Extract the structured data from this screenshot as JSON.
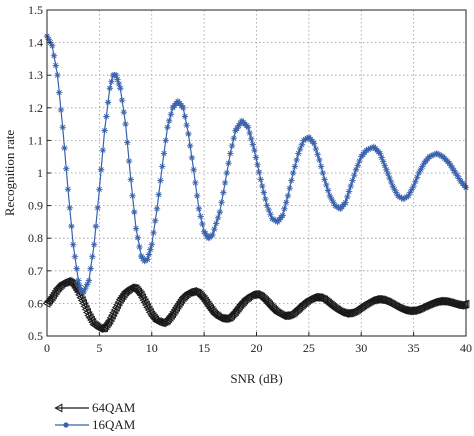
{
  "chart_data": {
    "type": "line",
    "xlabel": "SNR (dB)",
    "ylabel": "Recognition rate",
    "xlim": [
      0,
      40
    ],
    "ylim": [
      0.5,
      1.5
    ],
    "x_ticks": [
      "0",
      "5",
      "10",
      "15",
      "20",
      "25",
      "30",
      "35",
      "40"
    ],
    "y_ticks": [
      "0.5",
      "0.6",
      "0.7",
      "0.8",
      "0.9",
      "1",
      "1.1",
      "1.2",
      "1.3",
      "1.4",
      "1.5"
    ],
    "grid": true,
    "legend_position": "bottom-left",
    "series": [
      {
        "name": "64QAM",
        "color": "#1a1a1a",
        "marker": "left-triangle",
        "points": [
          [
            0,
            0.6
          ],
          [
            0.5,
            0.62
          ],
          [
            1.0,
            0.645
          ],
          [
            1.5,
            0.662
          ],
          [
            2.0,
            0.668
          ],
          [
            2.5,
            0.66
          ],
          [
            3.0,
            0.635
          ],
          [
            3.5,
            0.6
          ],
          [
            4.0,
            0.563
          ],
          [
            4.5,
            0.535
          ],
          [
            5.0,
            0.523
          ],
          [
            5.5,
            0.525
          ],
          [
            6.0,
            0.548
          ],
          [
            6.5,
            0.58
          ],
          [
            7.0,
            0.612
          ],
          [
            7.5,
            0.635
          ],
          [
            8.0,
            0.648
          ],
          [
            8.5,
            0.645
          ],
          [
            9.0,
            0.625
          ],
          [
            9.5,
            0.595
          ],
          [
            10.0,
            0.565
          ],
          [
            10.5,
            0.545
          ],
          [
            11.0,
            0.54
          ],
          [
            11.5,
            0.548
          ],
          [
            12.0,
            0.568
          ],
          [
            12.5,
            0.594
          ],
          [
            13.0,
            0.618
          ],
          [
            13.5,
            0.633
          ],
          [
            14.0,
            0.637
          ],
          [
            14.5,
            0.63
          ],
          [
            15.0,
            0.613
          ],
          [
            15.5,
            0.59
          ],
          [
            16.0,
            0.568
          ],
          [
            16.5,
            0.555
          ],
          [
            17.0,
            0.553
          ],
          [
            17.5,
            0.558
          ],
          [
            18.0,
            0.575
          ],
          [
            18.5,
            0.596
          ],
          [
            19.0,
            0.614
          ],
          [
            19.5,
            0.626
          ],
          [
            20.0,
            0.628
          ],
          [
            20.5,
            0.62
          ],
          [
            21.0,
            0.605
          ],
          [
            21.5,
            0.587
          ],
          [
            22.0,
            0.571
          ],
          [
            22.5,
            0.562
          ],
          [
            23.0,
            0.563
          ],
          [
            23.5,
            0.57
          ],
          [
            24.0,
            0.584
          ],
          [
            24.5,
            0.599
          ],
          [
            25.0,
            0.612
          ],
          [
            25.5,
            0.619
          ],
          [
            26.0,
            0.618
          ],
          [
            26.5,
            0.611
          ],
          [
            27.0,
            0.598
          ],
          [
            27.5,
            0.585
          ],
          [
            28.0,
            0.574
          ],
          [
            28.5,
            0.569
          ],
          [
            29.0,
            0.571
          ],
          [
            29.5,
            0.578
          ],
          [
            30.0,
            0.589
          ],
          [
            30.5,
            0.6
          ],
          [
            31.0,
            0.609
          ],
          [
            31.5,
            0.613
          ],
          [
            32.0,
            0.611
          ],
          [
            32.5,
            0.605
          ],
          [
            33.0,
            0.596
          ],
          [
            33.5,
            0.587
          ],
          [
            34.0,
            0.58
          ],
          [
            34.5,
            0.577
          ],
          [
            35.0,
            0.578
          ],
          [
            35.5,
            0.583
          ],
          [
            36.0,
            0.591
          ],
          [
            36.5,
            0.598
          ],
          [
            37.0,
            0.604
          ],
          [
            37.5,
            0.607
          ],
          [
            38.0,
            0.606
          ],
          [
            38.5,
            0.602
          ],
          [
            39.0,
            0.597
          ],
          [
            39.5,
            0.594
          ],
          [
            40.0,
            0.598
          ]
        ]
      },
      {
        "name": "16QAM",
        "color": "#3a62ad",
        "marker": "asterisk",
        "points": [
          [
            0,
            1.42
          ],
          [
            0.5,
            1.39
          ],
          [
            1.0,
            1.3
          ],
          [
            1.5,
            1.14
          ],
          [
            2.0,
            0.95
          ],
          [
            2.5,
            0.78
          ],
          [
            3.0,
            0.67
          ],
          [
            3.25,
            0.64
          ],
          [
            3.5,
            0.635
          ],
          [
            4.0,
            0.67
          ],
          [
            4.5,
            0.78
          ],
          [
            5.0,
            0.95
          ],
          [
            5.5,
            1.13
          ],
          [
            6.0,
            1.26
          ],
          [
            6.3,
            1.3
          ],
          [
            6.6,
            1.3
          ],
          [
            7.0,
            1.26
          ],
          [
            7.5,
            1.15
          ],
          [
            8.0,
            0.98
          ],
          [
            8.5,
            0.83
          ],
          [
            9.0,
            0.745
          ],
          [
            9.3,
            0.73
          ],
          [
            9.6,
            0.735
          ],
          [
            10.0,
            0.78
          ],
          [
            10.5,
            0.89
          ],
          [
            11.0,
            1.02
          ],
          [
            11.5,
            1.14
          ],
          [
            12.0,
            1.2
          ],
          [
            12.5,
            1.22
          ],
          [
            13.0,
            1.2
          ],
          [
            13.5,
            1.12
          ],
          [
            14.0,
            1.01
          ],
          [
            14.5,
            0.89
          ],
          [
            15.0,
            0.82
          ],
          [
            15.4,
            0.8
          ],
          [
            15.8,
            0.81
          ],
          [
            16.5,
            0.88
          ],
          [
            17.0,
            0.97
          ],
          [
            17.5,
            1.06
          ],
          [
            18.0,
            1.13
          ],
          [
            18.6,
            1.16
          ],
          [
            19.2,
            1.14
          ],
          [
            19.8,
            1.07
          ],
          [
            20.4,
            0.98
          ],
          [
            21.0,
            0.9
          ],
          [
            21.5,
            0.86
          ],
          [
            22.0,
            0.85
          ],
          [
            22.5,
            0.87
          ],
          [
            23.0,
            0.93
          ],
          [
            23.5,
            1.0
          ],
          [
            24.0,
            1.06
          ],
          [
            24.5,
            1.1
          ],
          [
            25.0,
            1.11
          ],
          [
            25.5,
            1.09
          ],
          [
            26.0,
            1.04
          ],
          [
            26.5,
            0.98
          ],
          [
            27.0,
            0.93
          ],
          [
            27.5,
            0.9
          ],
          [
            28.0,
            0.89
          ],
          [
            28.5,
            0.91
          ],
          [
            29.0,
            0.96
          ],
          [
            29.5,
            1.01
          ],
          [
            30.0,
            1.05
          ],
          [
            30.5,
            1.07
          ],
          [
            31.2,
            1.08
          ],
          [
            31.8,
            1.06
          ],
          [
            32.4,
            1.01
          ],
          [
            33.0,
            0.96
          ],
          [
            33.5,
            0.93
          ],
          [
            34.0,
            0.92
          ],
          [
            34.5,
            0.93
          ],
          [
            35.0,
            0.96
          ],
          [
            35.5,
            1.0
          ],
          [
            36.0,
            1.03
          ],
          [
            36.5,
            1.05
          ],
          [
            37.2,
            1.06
          ],
          [
            37.8,
            1.05
          ],
          [
            38.4,
            1.03
          ],
          [
            39.0,
            1.0
          ],
          [
            39.5,
            0.975
          ],
          [
            40.0,
            0.955
          ]
        ]
      }
    ]
  }
}
